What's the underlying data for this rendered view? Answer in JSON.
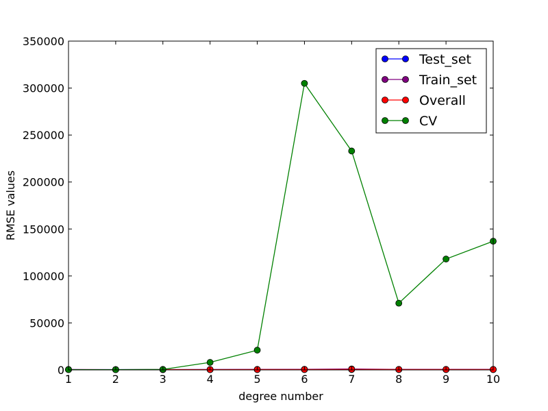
{
  "chart_data": {
    "type": "line",
    "title": "",
    "xlabel": "degree number",
    "ylabel": "RMSE values",
    "x": [
      1,
      2,
      3,
      4,
      5,
      6,
      7,
      8,
      9,
      10
    ],
    "xlim": [
      1,
      10
    ],
    "ylim": [
      0,
      350000
    ],
    "xticks": [
      "1",
      "2",
      "3",
      "4",
      "5",
      "6",
      "7",
      "8",
      "9",
      "10"
    ],
    "yticks": [
      "0",
      "50000",
      "100000",
      "150000",
      "200000",
      "250000",
      "300000",
      "350000"
    ],
    "grid": false,
    "legend_position": "top-right",
    "series": [
      {
        "name": "Test_set",
        "color": "#0000ff",
        "values": [
          400,
          350,
          380,
          400,
          500,
          600,
          1000,
          500,
          500,
          500
        ]
      },
      {
        "name": "Train_set",
        "color": "#800080",
        "values": [
          300,
          250,
          260,
          280,
          300,
          350,
          400,
          350,
          350,
          350
        ]
      },
      {
        "name": "Overall",
        "color": "#ff0000",
        "values": [
          350,
          300,
          320,
          350,
          400,
          450,
          700,
          450,
          450,
          450
        ]
      },
      {
        "name": "CV",
        "color": "#008000",
        "values": [
          300,
          300,
          500,
          8000,
          21000,
          305000,
          233000,
          71000,
          118000,
          137000
        ]
      }
    ]
  }
}
